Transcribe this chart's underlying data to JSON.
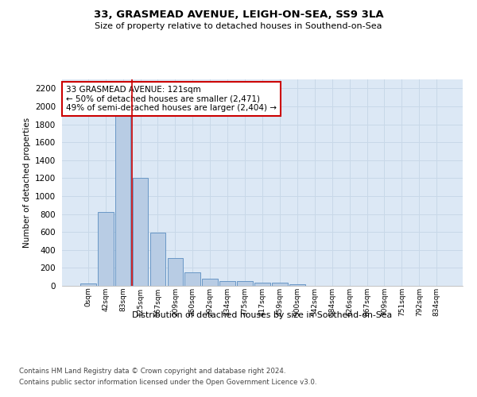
{
  "title": "33, GRASMEAD AVENUE, LEIGH-ON-SEA, SS9 3LA",
  "subtitle": "Size of property relative to detached houses in Southend-on-Sea",
  "xlabel": "Distribution of detached houses by size in Southend-on-Sea",
  "ylabel": "Number of detached properties",
  "bar_labels": [
    "0sqm",
    "42sqm",
    "83sqm",
    "125sqm",
    "167sqm",
    "209sqm",
    "250sqm",
    "292sqm",
    "334sqm",
    "375sqm",
    "417sqm",
    "459sqm",
    "500sqm",
    "542sqm",
    "584sqm",
    "626sqm",
    "667sqm",
    "709sqm",
    "751sqm",
    "792sqm",
    "834sqm"
  ],
  "bar_values": [
    28,
    820,
    1900,
    1200,
    590,
    310,
    150,
    80,
    50,
    52,
    32,
    32,
    18,
    0,
    0,
    0,
    0,
    0,
    0,
    0,
    0
  ],
  "bar_color": "#b8cce4",
  "bar_edge_color": "#5b8dc0",
  "grid_color": "#c8d8e8",
  "background_color": "#dce8f5",
  "ylim": [
    0,
    2300
  ],
  "yticks": [
    0,
    200,
    400,
    600,
    800,
    1000,
    1200,
    1400,
    1600,
    1800,
    2000,
    2200
  ],
  "property_line_color": "#cc0000",
  "annotation_text": "33 GRASMEAD AVENUE: 121sqm\n← 50% of detached houses are smaller (2,471)\n49% of semi-detached houses are larger (2,404) →",
  "footer1": "Contains HM Land Registry data © Crown copyright and database right 2024.",
  "footer2": "Contains public sector information licensed under the Open Government Licence v3.0."
}
